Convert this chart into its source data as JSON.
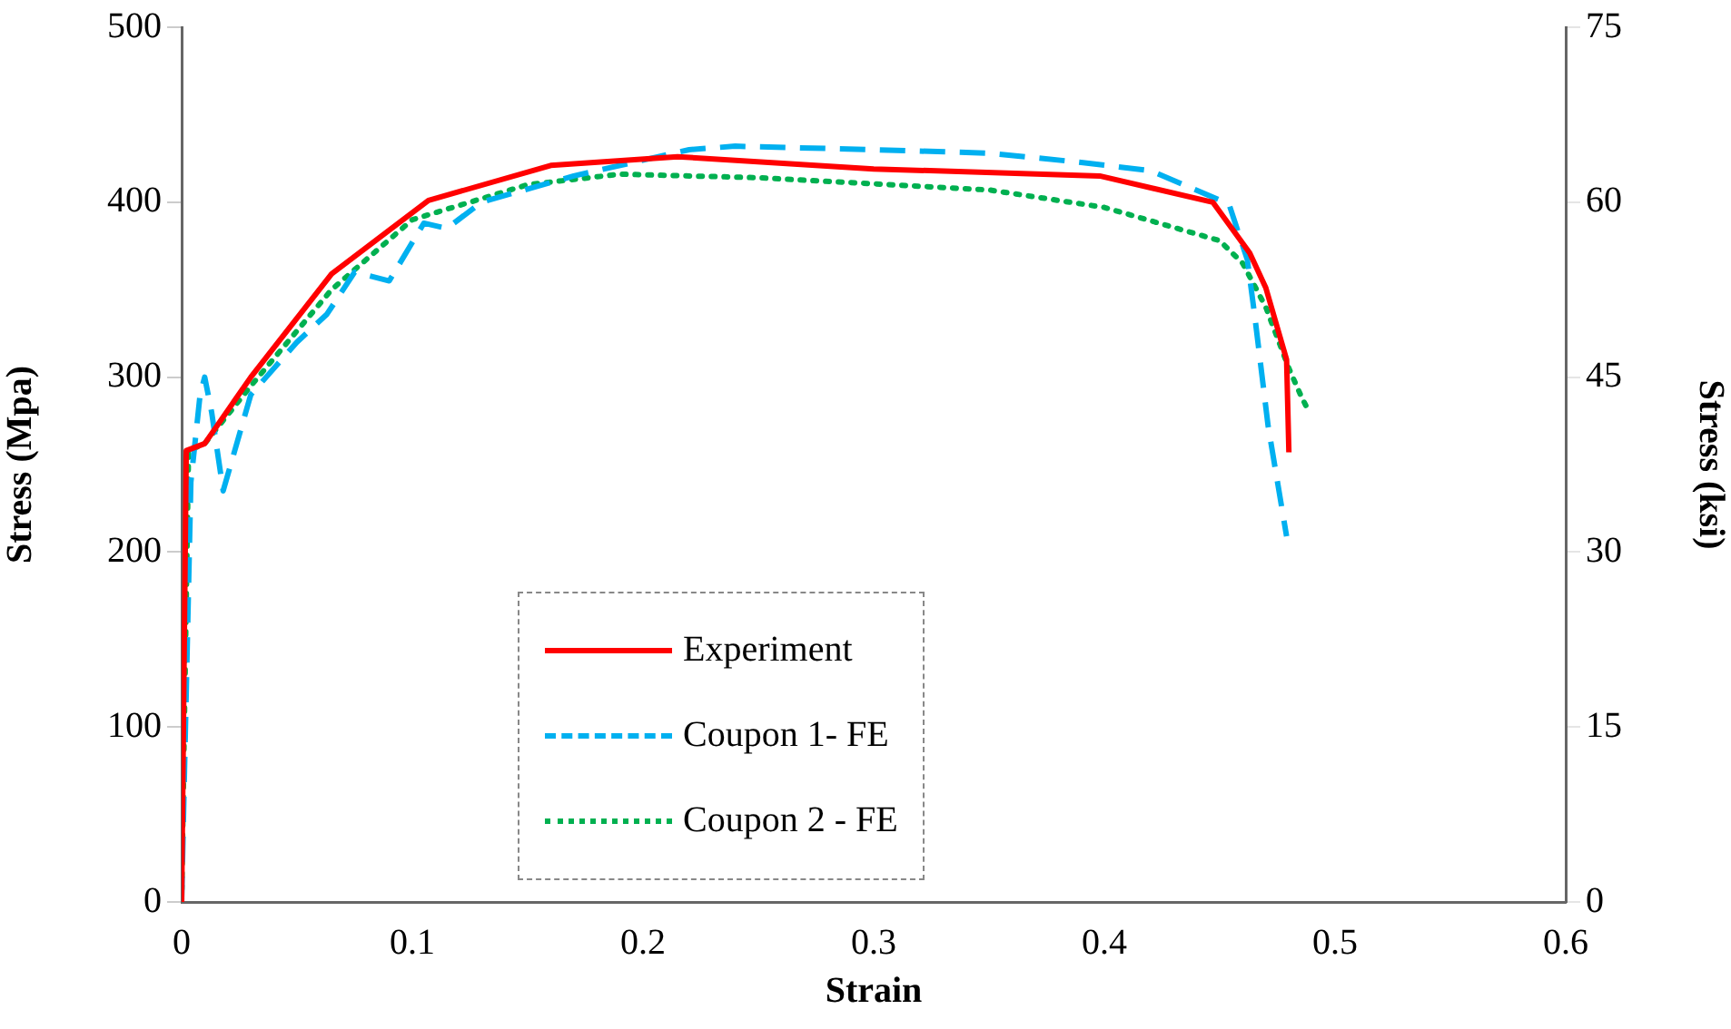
{
  "chart_data": {
    "type": "line",
    "xlabel": "Strain",
    "ylabel": "Stress (Mpa)",
    "y2label": "Stress (ksi)",
    "xlim": [
      0,
      0.6
    ],
    "xticks": [
      0,
      0.1,
      0.2,
      0.3,
      0.4,
      0.5,
      0.6
    ],
    "ylim": [
      0,
      500
    ],
    "yticks": [
      0,
      100,
      200,
      300,
      400,
      500
    ],
    "y2lim": [
      0,
      75
    ],
    "y2ticks": [
      0,
      15,
      30,
      45,
      60,
      75
    ],
    "grid": false,
    "legend": "bottom",
    "marker": "none",
    "series": [
      {
        "name": "Experiment",
        "color": "#ff0000",
        "line_style": "solid",
        "x": [
          0,
          0.002,
          0.01,
          0.03,
          0.065,
          0.107,
          0.16,
          0.215,
          0.3,
          0.398,
          0.447,
          0.463,
          0.47,
          0.479,
          0.48
        ],
        "values": [
          0,
          258,
          262,
          300,
          359,
          401,
          421,
          426,
          419,
          415,
          400,
          371,
          351,
          310,
          257
        ]
      },
      {
        "name": "Coupon 1- FE",
        "color": "#00b0f0",
        "line_style": "dashed",
        "x": [
          0,
          0.004,
          0.008,
          0.01,
          0.013,
          0.018,
          0.03,
          0.05,
          0.063,
          0.075,
          0.09,
          0.105,
          0.115,
          0.13,
          0.17,
          0.22,
          0.24,
          0.3,
          0.35,
          0.388,
          0.42,
          0.454,
          0.462,
          0.465,
          0.471,
          0.479
        ],
        "values": [
          0,
          240,
          290,
          300,
          280,
          235,
          290,
          320,
          336,
          360,
          355,
          388,
          385,
          400,
          415,
          430,
          432,
          430,
          428,
          423,
          418,
          399,
          367,
          337,
          272,
          209
        ]
      },
      {
        "name": "Coupon 2 - FE",
        "color": "#00b050",
        "line_style": "dotted",
        "x": [
          0,
          0.003,
          0.01,
          0.03,
          0.065,
          0.1,
          0.15,
          0.19,
          0.25,
          0.35,
          0.4,
          0.45,
          0.46,
          0.47,
          0.48,
          0.485,
          0.488
        ],
        "values": [
          0,
          258,
          262,
          295,
          350,
          390,
          410,
          416,
          414,
          407,
          397,
          378,
          365,
          340,
          305,
          290,
          282
        ]
      }
    ]
  }
}
